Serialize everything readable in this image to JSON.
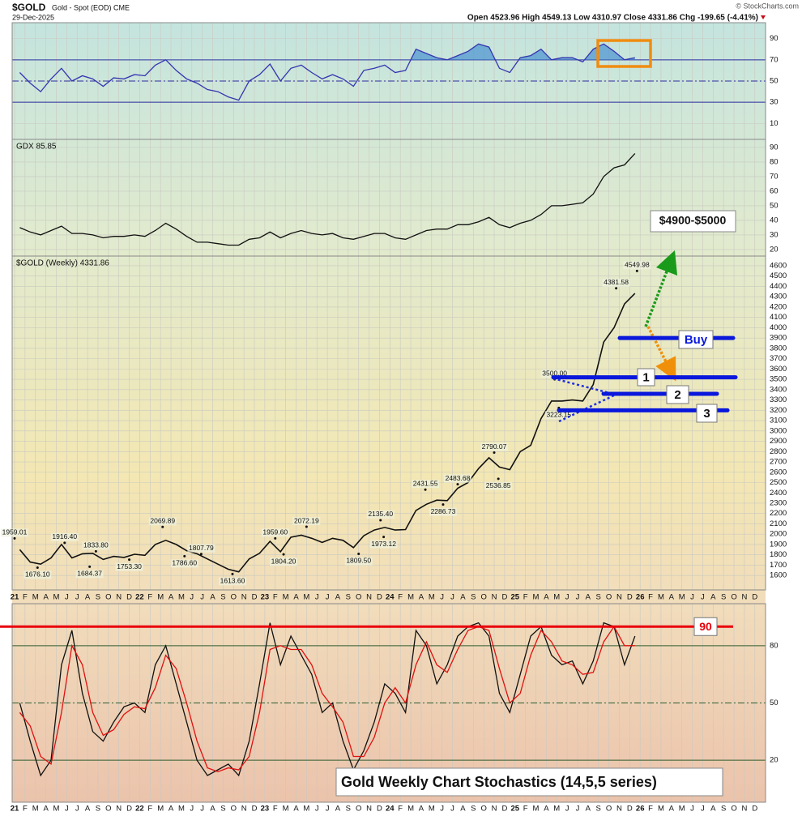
{
  "header": {
    "symbol": "$GOLD",
    "name": "Gold - Spot (EOD) CME",
    "date": "29-Dec-2025",
    "quote": "Open 4523.96 High 4549.13 Low 4310.97 Close 4331.86 Chg -199.65 (-4.41%)",
    "credit": "© StockCharts.com"
  },
  "chart_data": [
    {
      "type": "line",
      "ylim": [
        -5,
        105
      ],
      "yticks": [
        90,
        70,
        50,
        30,
        10
      ],
      "levels": [
        70,
        50,
        30
      ],
      "grid": true,
      "series": [
        {
          "color": "#3535b0",
          "values": [
            58,
            48,
            40,
            52,
            62,
            50,
            55,
            52,
            45,
            53,
            52,
            56,
            55,
            65,
            70,
            60,
            52,
            48,
            42,
            40,
            35,
            32,
            50,
            56,
            66,
            50,
            62,
            65,
            58,
            52,
            56,
            52,
            45,
            60,
            62,
            65,
            58,
            60,
            80,
            76,
            72,
            70,
            74,
            78,
            85,
            82,
            62,
            58,
            72,
            74,
            80,
            70,
            72,
            72,
            68,
            80,
            85,
            78,
            70,
            72,
            null,
            null,
            null,
            null,
            null,
            null,
            null,
            null,
            null,
            null,
            null,
            null
          ]
        }
      ]
    },
    {
      "type": "line",
      "label": "GDX 85.85",
      "ylim": [
        15.5,
        95.5
      ],
      "yticks": [
        20,
        30,
        40,
        50,
        60,
        70,
        80,
        90
      ],
      "grid": true,
      "series": [
        {
          "color": "#111111",
          "values": [
            35,
            32,
            30,
            33,
            36,
            31,
            31,
            30,
            28,
            29,
            29,
            30,
            29,
            33,
            38,
            34,
            29,
            25,
            25,
            24,
            23,
            23,
            27,
            28,
            32,
            28,
            31,
            33,
            31,
            30,
            31,
            28,
            27,
            29,
            31,
            31,
            28,
            27,
            30,
            33,
            34,
            34,
            37,
            37,
            39,
            42,
            37,
            35,
            38,
            40,
            44,
            50,
            50,
            51,
            52,
            58,
            70,
            76,
            78,
            85.85,
            null,
            null,
            null,
            null,
            null,
            null,
            null,
            null,
            null,
            null,
            null,
            null
          ]
        }
      ]
    },
    {
      "type": "line",
      "label": "$GOLD (Weekly) 4331.86",
      "ylim": [
        1460,
        4694
      ],
      "yticks": [
        1600,
        1700,
        1800,
        1900,
        2000,
        2100,
        2200,
        2300,
        2400,
        2500,
        2600,
        2700,
        2800,
        2900,
        3000,
        3100,
        3200,
        3300,
        3400,
        3500,
        3600,
        3700,
        3800,
        3900,
        4000,
        4100,
        4200,
        4300,
        4400,
        4500,
        4600
      ],
      "grid": true,
      "categories": [
        "21",
        "F",
        "M",
        "A",
        "M",
        "J",
        "J",
        "A",
        "S",
        "O",
        "N",
        "D",
        "22",
        "F",
        "M",
        "A",
        "M",
        "J",
        "J",
        "A",
        "S",
        "O",
        "N",
        "D",
        "23",
        "F",
        "M",
        "A",
        "M",
        "J",
        "J",
        "A",
        "S",
        "O",
        "N",
        "D",
        "24",
        "F",
        "M",
        "A",
        "M",
        "J",
        "J",
        "A",
        "S",
        "O",
        "N",
        "D",
        "25",
        "F",
        "M",
        "A",
        "M",
        "J",
        "J",
        "A",
        "S",
        "O",
        "N",
        "D",
        "26",
        "F",
        "M",
        "A",
        "M",
        "J",
        "J",
        "A",
        "S",
        "O",
        "N",
        "D"
      ],
      "series": [
        {
          "color": "#111111",
          "values": [
            1850,
            1730,
            1710,
            1770,
            1900,
            1770,
            1810,
            1815,
            1755,
            1785,
            1775,
            1805,
            1795,
            1900,
            1940,
            1900,
            1840,
            1810,
            1760,
            1710,
            1660,
            1635,
            1760,
            1815,
            1930,
            1830,
            1970,
            1990,
            1960,
            1920,
            1960,
            1940,
            1870,
            1985,
            2040,
            2065,
            2040,
            2045,
            2230,
            2290,
            2330,
            2325,
            2445,
            2500,
            2635,
            2740,
            2650,
            2625,
            2800,
            2860,
            3120,
            3290,
            3290,
            3300,
            3290,
            3450,
            3860,
            4000,
            4230,
            4332,
            null,
            null,
            null,
            null,
            null,
            null,
            null,
            null,
            null,
            null,
            null,
            null
          ]
        }
      ],
      "annotations": [
        {
          "at": 0,
          "value": 1959.01,
          "label": "1959.01"
        },
        {
          "at": 2.2,
          "value": 1676.1,
          "label": "1676.10"
        },
        {
          "at": 4.8,
          "value": 1916.4,
          "label": "1916.40"
        },
        {
          "at": 7.2,
          "value": 1684.37,
          "label": "1684.37"
        },
        {
          "at": 7.8,
          "value": 1833.8,
          "label": "1833.80"
        },
        {
          "at": 11,
          "value": 1753.3,
          "label": "1753.30"
        },
        {
          "at": 14.2,
          "value": 2069.89,
          "label": "2069.89"
        },
        {
          "at": 16.3,
          "value": 1786.6,
          "label": "1786.60"
        },
        {
          "at": 17.9,
          "value": 1807.79,
          "label": "1807.79"
        },
        {
          "at": 20.9,
          "value": 1613.6,
          "label": "1613.60"
        },
        {
          "at": 25,
          "value": 1959.6,
          "label": "1959.60"
        },
        {
          "at": 25.8,
          "value": 1804.2,
          "label": "1804.20"
        },
        {
          "at": 28,
          "value": 2072.19,
          "label": "2072.19"
        },
        {
          "at": 33,
          "value": 1809.5,
          "label": "1809.50"
        },
        {
          "at": 35.1,
          "value": 2135.4,
          "label": "2135.40"
        },
        {
          "at": 35.4,
          "value": 1973.12,
          "label": "1973.12"
        },
        {
          "at": 39.4,
          "value": 2431.55,
          "label": "2431.55"
        },
        {
          "at": 41.1,
          "value": 2286.73,
          "label": "2286.73"
        },
        {
          "at": 42.5,
          "value": 2483.68,
          "label": "2483.68"
        },
        {
          "at": 46,
          "value": 2790.07,
          "label": "2790.07"
        },
        {
          "at": 46.4,
          "value": 2536.85,
          "label": "2536.85"
        },
        {
          "at": 51.8,
          "value": 3500,
          "label": "3500.00"
        },
        {
          "at": 52.2,
          "value": 3223.15,
          "label": "3223.15"
        },
        {
          "at": 57.7,
          "value": 4381.58,
          "label": "4381.58"
        },
        {
          "at": 59.7,
          "value": 4549.98,
          "label": "4549.98"
        }
      ],
      "levels": [
        {
          "value": 3900,
          "label": "Buy"
        },
        {
          "value": 3520,
          "label": "1"
        },
        {
          "value": 3360,
          "label": "2"
        },
        {
          "value": 3200,
          "label": "3"
        }
      ],
      "target_label": "$4900-$5000"
    },
    {
      "type": "line",
      "title": "Gold Weekly Chart Stochastics (14,5,5 series)",
      "ylim": [
        -2,
        102
      ],
      "yticks": [
        80,
        50,
        20
      ],
      "levels": [
        80,
        50,
        20
      ],
      "alert_level": 90,
      "grid": true,
      "categories": [
        "21",
        "F",
        "M",
        "A",
        "M",
        "J",
        "J",
        "A",
        "S",
        "O",
        "N",
        "D",
        "22",
        "F",
        "M",
        "A",
        "M",
        "J",
        "J",
        "A",
        "S",
        "O",
        "N",
        "D",
        "23",
        "F",
        "M",
        "A",
        "M",
        "J",
        "J",
        "A",
        "S",
        "O",
        "N",
        "D",
        "24",
        "F",
        "M",
        "A",
        "M",
        "J",
        "J",
        "A",
        "S",
        "O",
        "N",
        "D",
        "25",
        "F",
        "M",
        "A",
        "M",
        "J",
        "J",
        "A",
        "S",
        "O",
        "N",
        "D",
        "26",
        "F",
        "M",
        "A",
        "M",
        "J",
        "J",
        "A",
        "S",
        "O",
        "N",
        "D"
      ],
      "series": [
        {
          "color": "#111111",
          "values": [
            50,
            30,
            12,
            20,
            70,
            88,
            55,
            35,
            30,
            40,
            48,
            50,
            45,
            70,
            80,
            60,
            40,
            20,
            12,
            15,
            18,
            12,
            30,
            60,
            92,
            70,
            85,
            75,
            65,
            45,
            50,
            30,
            15,
            25,
            40,
            60,
            55,
            45,
            88,
            80,
            60,
            70,
            85,
            90,
            92,
            85,
            55,
            45,
            65,
            85,
            90,
            75,
            70,
            72,
            60,
            72,
            92,
            90,
            70,
            85,
            null,
            null,
            null,
            null,
            null,
            null,
            null,
            null,
            null,
            null,
            null,
            null
          ]
        },
        {
          "color": "#e01010",
          "values": [
            45,
            38,
            22,
            18,
            45,
            80,
            70,
            45,
            33,
            36,
            44,
            48,
            47,
            58,
            75,
            68,
            50,
            30,
            16,
            14,
            16,
            15,
            22,
            45,
            78,
            80,
            78,
            78,
            70,
            55,
            48,
            40,
            22,
            22,
            32,
            50,
            58,
            50,
            70,
            82,
            70,
            66,
            78,
            88,
            90,
            88,
            68,
            50,
            55,
            75,
            88,
            82,
            72,
            70,
            65,
            66,
            82,
            90,
            80,
            80,
            null,
            null,
            null,
            null,
            null,
            null,
            null,
            null,
            null,
            null,
            null,
            null
          ]
        }
      ]
    }
  ]
}
